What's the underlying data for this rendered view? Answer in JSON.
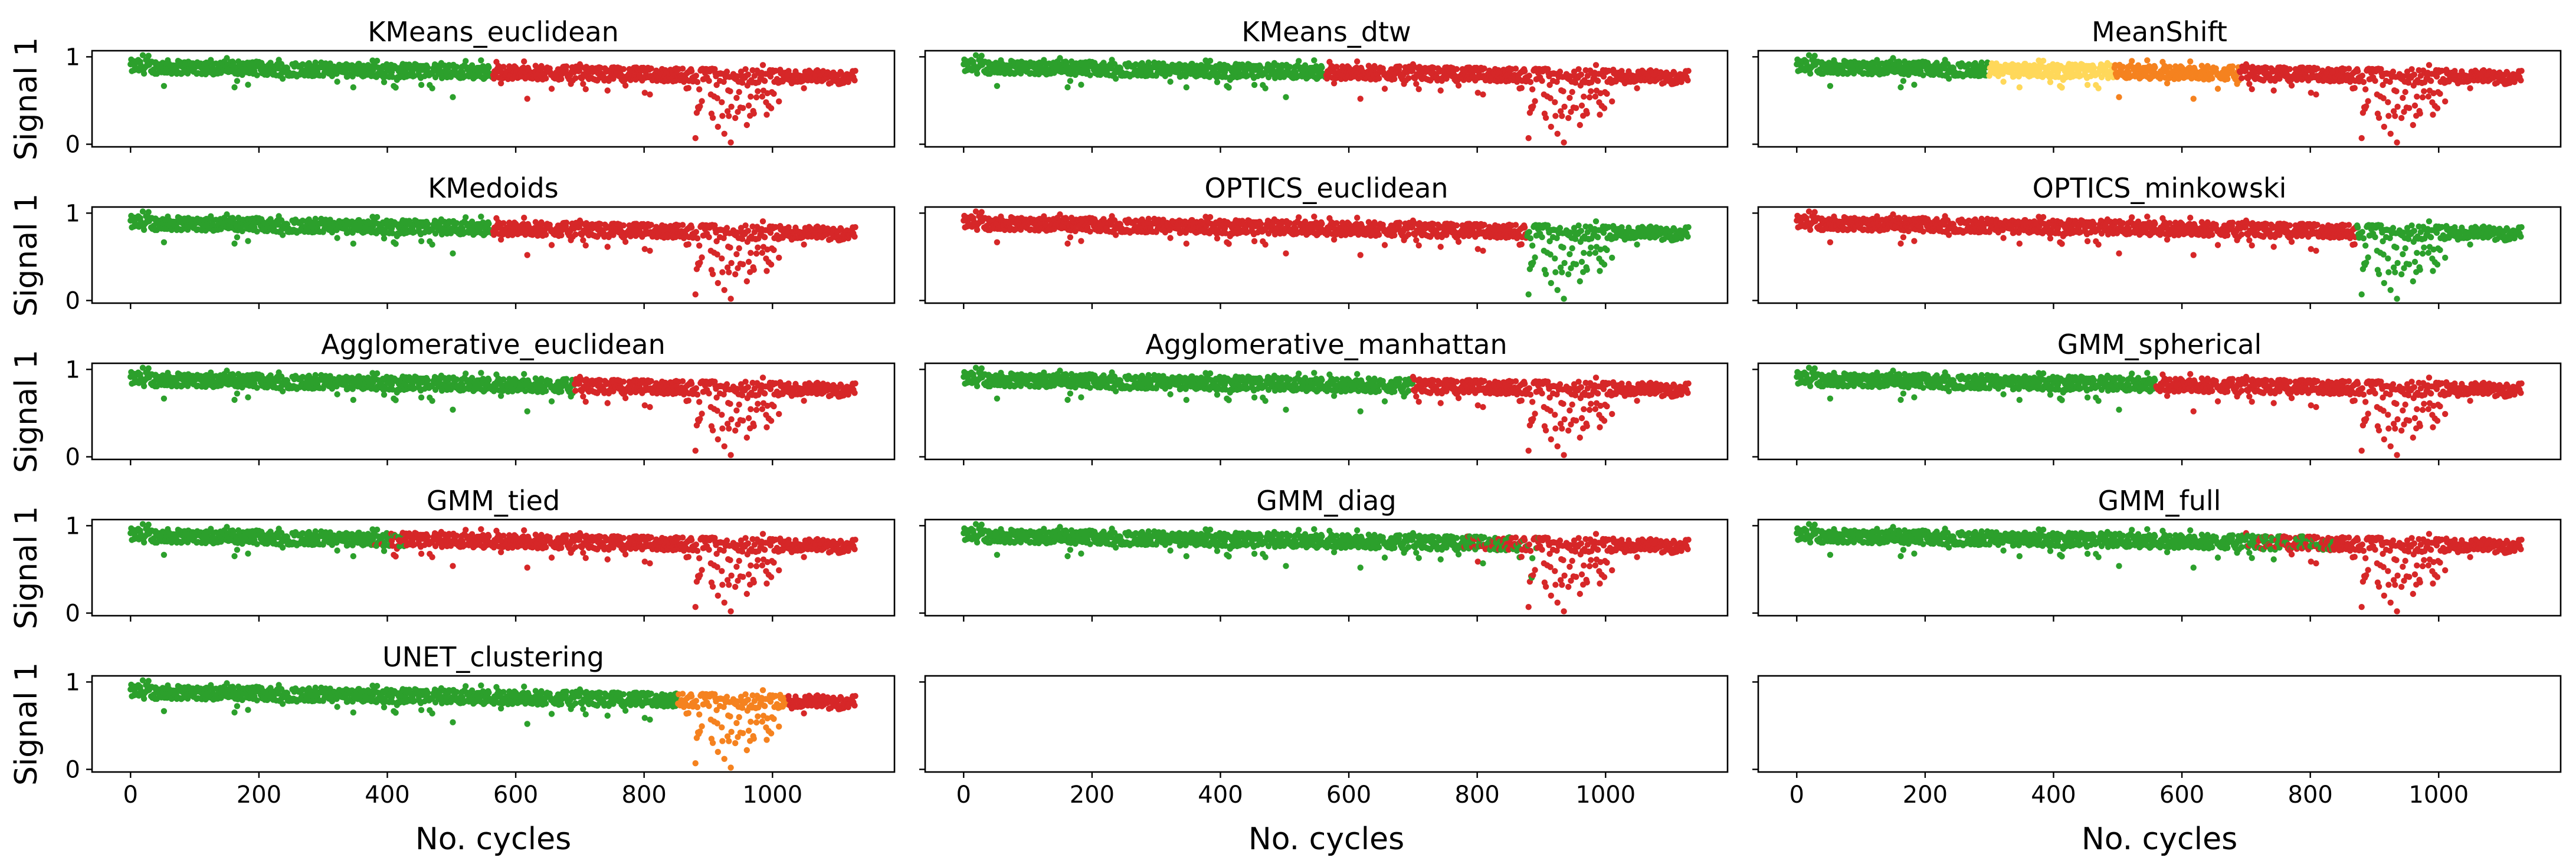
{
  "figure": {
    "xlabel": "No. cycles",
    "ylabel": "Signal 1",
    "xticks": [
      0,
      200,
      400,
      600,
      800,
      1000
    ],
    "yticks": [
      0,
      1
    ],
    "xlim": [
      -60,
      1190
    ],
    "ylim": [
      -0.03,
      1.07
    ]
  },
  "colors": {
    "green": "#2ca02c",
    "red": "#d62728",
    "orange": "#f5821f",
    "yellow": "#ffd85a",
    "axis": "#000000"
  },
  "signal": {
    "n_cycles": 1130,
    "baseline_start": 0.89,
    "baseline_end": 0.76,
    "dip_center": 935,
    "dip_points": [
      [
        880,
        0.07
      ],
      [
        905,
        0.35
      ],
      [
        915,
        0.2
      ],
      [
        925,
        0.12
      ],
      [
        935,
        0.02
      ],
      [
        942,
        0.3
      ],
      [
        950,
        0.42
      ],
      [
        960,
        0.22
      ],
      [
        970,
        0.38
      ],
      [
        990,
        0.48
      ]
    ]
  },
  "chart_data": [
    {
      "type": "scatter",
      "title": "KMeans_euclidean",
      "segments": [
        {
          "from": 0,
          "to": 565,
          "color": "green"
        },
        {
          "from": 565,
          "to": 1130,
          "color": "red"
        }
      ]
    },
    {
      "type": "scatter",
      "title": "KMeans_dtw",
      "segments": [
        {
          "from": 0,
          "to": 565,
          "color": "green"
        },
        {
          "from": 565,
          "to": 1130,
          "color": "red"
        }
      ]
    },
    {
      "type": "scatter",
      "title": "MeanShift",
      "segments": [
        {
          "from": 0,
          "to": 300,
          "color": "green"
        },
        {
          "from": 300,
          "to": 495,
          "color": "yellow"
        },
        {
          "from": 495,
          "to": 690,
          "color": "orange"
        },
        {
          "from": 690,
          "to": 1130,
          "color": "red"
        }
      ]
    },
    {
      "type": "scatter",
      "title": "KMedoids",
      "segments": [
        {
          "from": 0,
          "to": 565,
          "color": "green"
        },
        {
          "from": 565,
          "to": 1130,
          "color": "red"
        }
      ]
    },
    {
      "type": "scatter",
      "title": "OPTICS_euclidean",
      "segments": [
        {
          "from": 0,
          "to": 878,
          "color": "red"
        },
        {
          "from": 878,
          "to": 1130,
          "color": "green"
        }
      ]
    },
    {
      "type": "scatter",
      "title": "OPTICS_minkowski",
      "segments": [
        {
          "from": 0,
          "to": 873,
          "color": "red"
        },
        {
          "from": 873,
          "to": 1130,
          "color": "green"
        }
      ]
    },
    {
      "type": "scatter",
      "title": "Agglomerative_euclidean",
      "segments": [
        {
          "from": 0,
          "to": 692,
          "color": "green"
        },
        {
          "from": 692,
          "to": 1130,
          "color": "red"
        }
      ]
    },
    {
      "type": "scatter",
      "title": "Agglomerative_manhattan",
      "segments": [
        {
          "from": 0,
          "to": 700,
          "color": "green"
        },
        {
          "from": 700,
          "to": 1130,
          "color": "red"
        }
      ]
    },
    {
      "type": "scatter",
      "title": "GMM_spherical",
      "segments": [
        {
          "from": 0,
          "to": 560,
          "color": "green"
        },
        {
          "from": 560,
          "to": 1130,
          "color": "red"
        }
      ]
    },
    {
      "type": "scatter",
      "title": "GMM_tied",
      "segments": [
        {
          "from": 0,
          "to": 400,
          "color": "green"
        },
        {
          "from": 400,
          "to": 1130,
          "color": "red"
        }
      ],
      "mix": {
        "from": 370,
        "to": 430,
        "color": "red"
      }
    },
    {
      "type": "scatter",
      "title": "GMM_diag",
      "segments": [
        {
          "from": 0,
          "to": 870,
          "color": "green"
        },
        {
          "from": 870,
          "to": 1130,
          "color": "red"
        }
      ],
      "mix": {
        "from": 760,
        "to": 900,
        "color": "red"
      }
    },
    {
      "type": "scatter",
      "title": "GMM_full",
      "segments": [
        {
          "from": 0,
          "to": 820,
          "color": "green"
        },
        {
          "from": 820,
          "to": 1130,
          "color": "red"
        }
      ],
      "mix": {
        "from": 690,
        "to": 840,
        "color": "red"
      }
    },
    {
      "type": "scatter",
      "title": "UNET_clustering",
      "segments": [
        {
          "from": 0,
          "to": 853,
          "color": "green"
        },
        {
          "from": 853,
          "to": 1025,
          "color": "orange"
        },
        {
          "from": 1025,
          "to": 1130,
          "color": "red"
        }
      ]
    },
    {
      "type": "empty",
      "title": "",
      "segments": []
    },
    {
      "type": "empty",
      "title": "",
      "segments": []
    }
  ]
}
